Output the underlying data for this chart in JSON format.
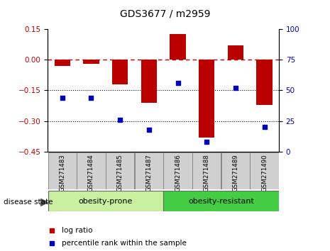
{
  "title": "GDS3677 / m2959",
  "samples": [
    "GSM271483",
    "GSM271484",
    "GSM271485",
    "GSM271487",
    "GSM271486",
    "GSM271488",
    "GSM271489",
    "GSM271490"
  ],
  "log_ratio": [
    -0.03,
    -0.02,
    -0.12,
    -0.21,
    0.125,
    -0.38,
    0.07,
    -0.22
  ],
  "percentile_rank": [
    44,
    44,
    26,
    18,
    56,
    8,
    52,
    20
  ],
  "group1_label": "obesity-prone",
  "group1_indices": [
    0,
    3
  ],
  "group2_label": "obesity-resistant",
  "group2_indices": [
    4,
    7
  ],
  "disease_state_label": "disease state",
  "legend_log_ratio": "log ratio",
  "legend_percentile": "percentile rank within the sample",
  "bar_color": "#bb0000",
  "dot_color": "#0000bb",
  "ylim_left": [
    -0.45,
    0.15
  ],
  "ylim_right": [
    0,
    100
  ],
  "yticks_left": [
    0.15,
    0.0,
    -0.15,
    -0.3,
    -0.45
  ],
  "yticks_right": [
    100,
    75,
    50,
    25,
    0
  ],
  "group1_bg": "#c8f0a0",
  "group2_bg": "#44cc44",
  "sample_bg": "#d0d0d0",
  "bar_width": 0.55
}
